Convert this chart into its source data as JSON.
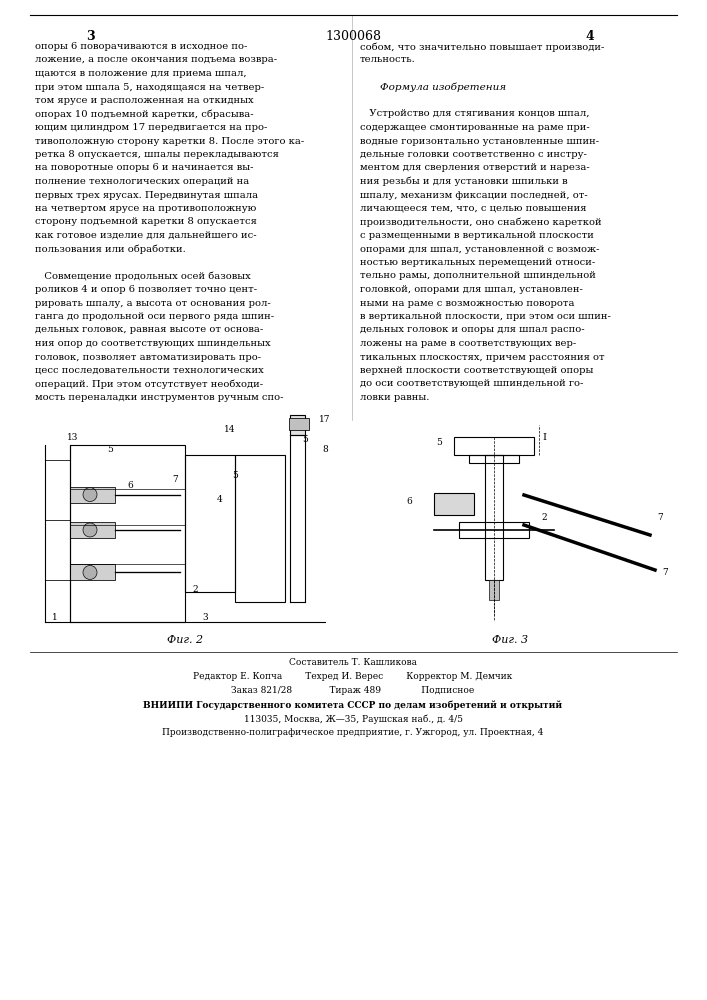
{
  "patent_number": "1300068",
  "page_numbers": [
    "3",
    "4"
  ],
  "bg_color": "#ffffff",
  "text_color": "#000000",
  "left_column_text": [
    "опоры 6 поворачиваются в исходное по-",
    "ложение, а после окончания подъема возвра-",
    "щаются в положение для приема шпал,",
    "при этом шпала 5, находящаяся на четвер-",
    "том ярусе и расположенная на откидных",
    "опорах 10 подъемной каретки, сбрасыва-",
    "ющим цилиндром 17 передвигается на про-",
    "тивоположную сторону каретки 8. После этого ка-",
    "ретка 8 опускается, шпалы перекладываются",
    "на поворотные опоры 6 и начинается вы-",
    "полнение технологических операций на",
    "первых трех ярусах. Передвинутая шпала",
    "на четвертом ярусе на противоположную",
    "сторону подъемной каретки 8 опускается",
    "как готовое изделие для дальнейшего ис-",
    "пользования или обработки.",
    "",
    "   Совмещение продольных осей базовых",
    "роликов 4 и опор 6 позволяет точно цент-",
    "рировать шпалу, а высота от основания рол-",
    "ганга до продольной оси первого ряда шпин-",
    "дельных головок, равная высоте от основа-",
    "ния опор до соответствующих шпиндельных",
    "головок, позволяет автоматизировать про-",
    "цесс последовательности технологических",
    "операций. При этом отсутствует необходи-",
    "мость переналадки инструментов ручным спо-"
  ],
  "right_column_text": [
    "собом, что значительно повышает производи-",
    "тельность.",
    "",
    "   Формула изобретения",
    "",
    "   Устройство для стягивания концов шпал,",
    "содержащее смонтированные на раме при-",
    "водные горизонтально установленные шпин-",
    "дельные головки соответственно с инстру-",
    "ментом для сверления отверстий и нареза-",
    "ния резьбы и для установки шпильки в",
    "шпалу, механизм фиксации последней, от-",
    "личающееся тем, что, с целью повышения",
    "производительности, оно снабжено кареткой",
    "с размещенными в вертикальной плоскости",
    "опорами для шпал, установленной с возмож-",
    "ностью вертикальных перемещений относи-",
    "тельно рамы, дополнительной шпиндельной",
    "головкой, опорами для шпал, установлен-",
    "ными на раме с возможностью поворота",
    "в вертикальной плоскости, при этом оси шпин-",
    "дельных головок и опоры для шпал распо-",
    "ложены на раме в соответствующих вер-",
    "тикальных плоскостях, причем расстояния от",
    "верхней плоскости соответствующей опоры",
    "до оси соответствующей шпиндельной го-",
    "ловки равны."
  ],
  "footer_lines": [
    "Составитель Т. Кашликова",
    "Редактор Е. Копча        Техред И. Верес        Корректор М. Демчик",
    "Заказ 821/28             Тираж 489              Подписное",
    "ВНИИПИ Государственного комитета СССР по делам изобретений и открытий",
    "113035, Москва, Ж—35, Раушская наб., д. 4/5",
    "Производственно-полиграфическое предприятие, г. Ужгород, ул. Проектная, 4"
  ],
  "fig2_label": "Фиг. 2",
  "fig3_label": "Фиг. 3",
  "formula_italic": "Формула изобретения"
}
